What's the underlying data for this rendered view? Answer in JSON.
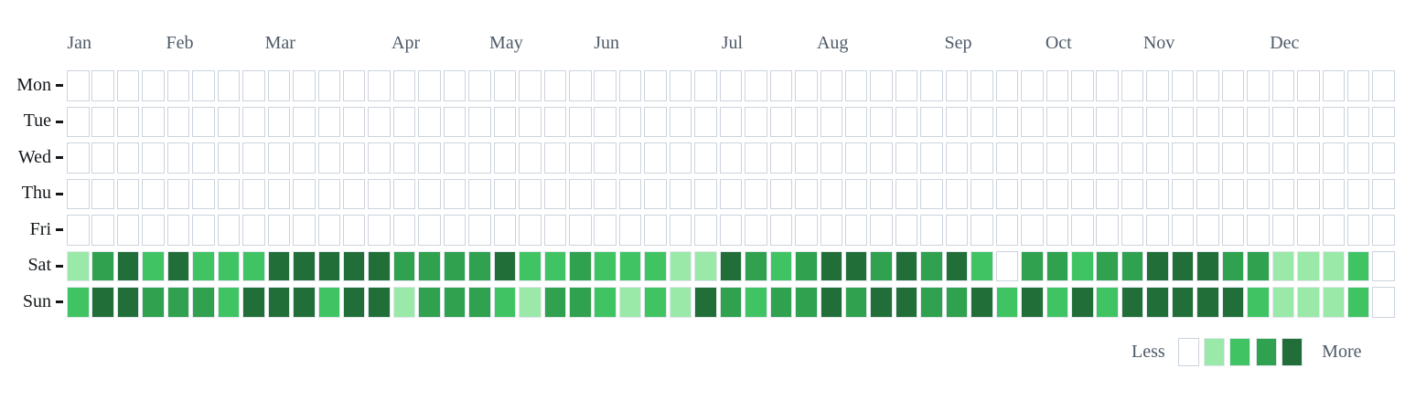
{
  "chart_data": {
    "type": "heatmap",
    "subtype": "calendar-year-weekly",
    "weeks": 53,
    "legend_position": "bottom-right",
    "grid_on": true,
    "months": [
      {
        "label": "Jan",
        "start_col": 0
      },
      {
        "label": "Feb",
        "start_col": 4
      },
      {
        "label": "Mar",
        "start_col": 8
      },
      {
        "label": "Apr",
        "start_col": 13
      },
      {
        "label": "May",
        "start_col": 17
      },
      {
        "label": "Jun",
        "start_col": 21
      },
      {
        "label": "Jul",
        "start_col": 26
      },
      {
        "label": "Aug",
        "start_col": 30
      },
      {
        "label": "Sep",
        "start_col": 35
      },
      {
        "label": "Oct",
        "start_col": 39
      },
      {
        "label": "Nov",
        "start_col": 43
      },
      {
        "label": "Dec",
        "start_col": 48
      }
    ],
    "day_labels": [
      "Mon",
      "Tue",
      "Wed",
      "Thu",
      "Fri",
      "Sat",
      "Sun"
    ],
    "level_colors": [
      "#ffffff",
      "#9be9a8",
      "#40c463",
      "#30a14e",
      "#216e39"
    ],
    "empty_cell_border_color": "#ccd3dd",
    "filled_cell_border_color": "#e2e6ed",
    "label_color": "#4e5a68",
    "day_label_color": "#14171a",
    "series": [
      {
        "name": "Mon",
        "values": [
          0,
          0,
          0,
          0,
          0,
          0,
          0,
          0,
          0,
          0,
          0,
          0,
          0,
          0,
          0,
          0,
          0,
          0,
          0,
          0,
          0,
          0,
          0,
          0,
          0,
          0,
          0,
          0,
          0,
          0,
          0,
          0,
          0,
          0,
          0,
          0,
          0,
          0,
          0,
          0,
          0,
          0,
          0,
          0,
          0,
          0,
          0,
          0,
          0,
          0,
          0,
          0,
          0
        ]
      },
      {
        "name": "Tue",
        "values": [
          0,
          0,
          0,
          0,
          0,
          0,
          0,
          0,
          0,
          0,
          0,
          0,
          0,
          0,
          0,
          0,
          0,
          0,
          0,
          0,
          0,
          0,
          0,
          0,
          0,
          0,
          0,
          0,
          0,
          0,
          0,
          0,
          0,
          0,
          0,
          0,
          0,
          0,
          0,
          0,
          0,
          0,
          0,
          0,
          0,
          0,
          0,
          0,
          0,
          0,
          0,
          0,
          0
        ]
      },
      {
        "name": "Wed",
        "values": [
          0,
          0,
          0,
          0,
          0,
          0,
          0,
          0,
          0,
          0,
          0,
          0,
          0,
          0,
          0,
          0,
          0,
          0,
          0,
          0,
          0,
          0,
          0,
          0,
          0,
          0,
          0,
          0,
          0,
          0,
          0,
          0,
          0,
          0,
          0,
          0,
          0,
          0,
          0,
          0,
          0,
          0,
          0,
          0,
          0,
          0,
          0,
          0,
          0,
          0,
          0,
          0,
          0
        ]
      },
      {
        "name": "Thu",
        "values": [
          0,
          0,
          0,
          0,
          0,
          0,
          0,
          0,
          0,
          0,
          0,
          0,
          0,
          0,
          0,
          0,
          0,
          0,
          0,
          0,
          0,
          0,
          0,
          0,
          0,
          0,
          0,
          0,
          0,
          0,
          0,
          0,
          0,
          0,
          0,
          0,
          0,
          0,
          0,
          0,
          0,
          0,
          0,
          0,
          0,
          0,
          0,
          0,
          0,
          0,
          0,
          0,
          0
        ]
      },
      {
        "name": "Fri",
        "values": [
          0,
          0,
          0,
          0,
          0,
          0,
          0,
          0,
          0,
          0,
          0,
          0,
          0,
          0,
          0,
          0,
          0,
          0,
          0,
          0,
          0,
          0,
          0,
          0,
          0,
          0,
          0,
          0,
          0,
          0,
          0,
          0,
          0,
          0,
          0,
          0,
          0,
          0,
          0,
          0,
          0,
          0,
          0,
          0,
          0,
          0,
          0,
          0,
          0,
          0,
          0,
          0,
          0
        ]
      },
      {
        "name": "Sat",
        "values": [
          1,
          3,
          4,
          2,
          4,
          2,
          2,
          2,
          4,
          4,
          4,
          4,
          4,
          3,
          3,
          3,
          3,
          4,
          2,
          2,
          3,
          2,
          2,
          2,
          1,
          1,
          4,
          3,
          2,
          3,
          4,
          4,
          3,
          4,
          3,
          4,
          2,
          0,
          3,
          3,
          2,
          3,
          3,
          4,
          4,
          4,
          3,
          3,
          1,
          1,
          1,
          2,
          0
        ]
      },
      {
        "name": "Sun",
        "values": [
          2,
          4,
          4,
          3,
          3,
          3,
          2,
          4,
          4,
          4,
          2,
          4,
          4,
          1,
          3,
          3,
          3,
          2,
          1,
          3,
          3,
          2,
          1,
          2,
          1,
          4,
          3,
          2,
          3,
          3,
          4,
          3,
          4,
          4,
          3,
          3,
          4,
          2,
          4,
          2,
          4,
          2,
          4,
          4,
          4,
          4,
          4,
          2,
          1,
          1,
          1,
          2,
          0
        ]
      }
    ],
    "legend": {
      "less_label": "Less",
      "more_label": "More",
      "levels": [
        0,
        1,
        2,
        3,
        4
      ]
    }
  }
}
